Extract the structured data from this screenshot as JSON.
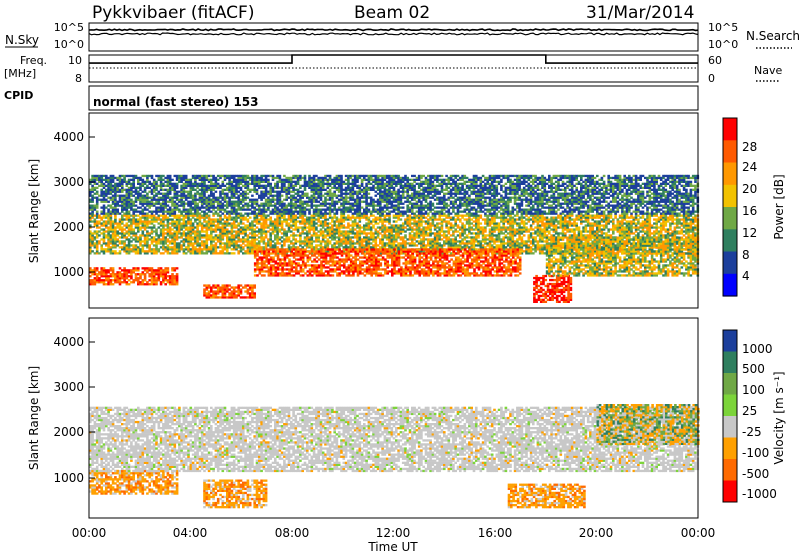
{
  "header": {
    "station": "Pykkvibaer (fitACF)",
    "beam": "Beam 02",
    "date": "31/Mar/2014"
  },
  "noise_panel": {
    "left_label": "N.Sky",
    "right_label": "N.Search",
    "left_ticks": [
      "10^5",
      "10^0"
    ],
    "right_ticks": [
      "10^5",
      "10^0"
    ]
  },
  "freq_panel": {
    "left_label_line1": "Freq.",
    "left_label_line2": "[MHz]",
    "right_label": "Nave",
    "left_ticks": [
      "10",
      "8"
    ],
    "right_ticks": [
      "60",
      "0"
    ]
  },
  "cpid": {
    "label": "CPID",
    "mode_text": "normal (fast stereo) 153"
  },
  "power_panel": {
    "ylabel": "Slant Range [km]",
    "yticks": [
      "4000",
      "3000",
      "2000",
      "1000"
    ],
    "colorbar_label": "Power [dB]",
    "colorbar_ticks": [
      "28",
      "24",
      "20",
      "16",
      "12",
      "8",
      "4"
    ],
    "colors": [
      "#ff0000",
      "#ff5a00",
      "#ff9800",
      "#f2c200",
      "#6fa845",
      "#2f7f5f",
      "#1c3f9c",
      "#0000ff"
    ]
  },
  "velocity_panel": {
    "ylabel": "Slant Range [km]",
    "yticks": [
      "4000",
      "3000",
      "2000",
      "1000"
    ],
    "colorbar_label": "Velocity [m s⁻¹]",
    "colorbar_ticks": [
      "1000",
      "500",
      "100",
      "25",
      "-25",
      "-100",
      "-500",
      "-1000"
    ],
    "colors": [
      "#1c3f9c",
      "#2f7f5f",
      "#6fa845",
      "#7cd43a",
      "#c8c8c8",
      "#ffa000",
      "#ff6a00",
      "#ff0000"
    ]
  },
  "xaxis": {
    "ticks": [
      "00:00",
      "04:00",
      "08:00",
      "12:00",
      "16:00",
      "20:00",
      "00:00"
    ],
    "label": "Time UT"
  },
  "chart_data": {
    "type": "heatmap",
    "x_range_hours": [
      0,
      24
    ],
    "y_range_km": [
      180,
      4600
    ],
    "freq_step_hours": [
      0,
      8,
      18,
      24
    ],
    "freq_levels_mhz": [
      9.6,
      10.5,
      9.6
    ],
    "power_bands": [
      {
        "t0": 0.0,
        "t1": 3.5,
        "r0": 700,
        "r1": 1100,
        "level": "high"
      },
      {
        "t0": 0.0,
        "t1": 24.0,
        "r0": 1400,
        "r1": 2300,
        "level": "mid"
      },
      {
        "t0": 4.5,
        "t1": 6.5,
        "r0": 400,
        "r1": 700,
        "level": "high"
      },
      {
        "t0": 6.5,
        "t1": 17.0,
        "r0": 900,
        "r1": 1500,
        "level": "high"
      },
      {
        "t0": 17.5,
        "t1": 19.0,
        "r0": 300,
        "r1": 900,
        "level": "peak"
      },
      {
        "t0": 18.0,
        "t1": 24.0,
        "r0": 900,
        "r1": 1800,
        "level": "mid"
      },
      {
        "t0": 0.0,
        "t1": 24.0,
        "r0": 2300,
        "r1": 3200,
        "level": "low"
      }
    ],
    "velocity_bands": [
      {
        "t0": 0.0,
        "t1": 3.5,
        "r0": 700,
        "r1": 1200,
        "level": "negative"
      },
      {
        "t0": 4.5,
        "t1": 7.0,
        "r0": 400,
        "r1": 1000,
        "level": "negative"
      },
      {
        "t0": 0.0,
        "t1": 24.0,
        "r0": 1200,
        "r1": 2600,
        "level": "zero"
      },
      {
        "t0": 16.5,
        "t1": 19.5,
        "r0": 400,
        "r1": 900,
        "level": "negative"
      },
      {
        "t0": 20.0,
        "t1": 24.0,
        "r0": 1800,
        "r1": 2700,
        "level": "mixed"
      }
    ]
  }
}
